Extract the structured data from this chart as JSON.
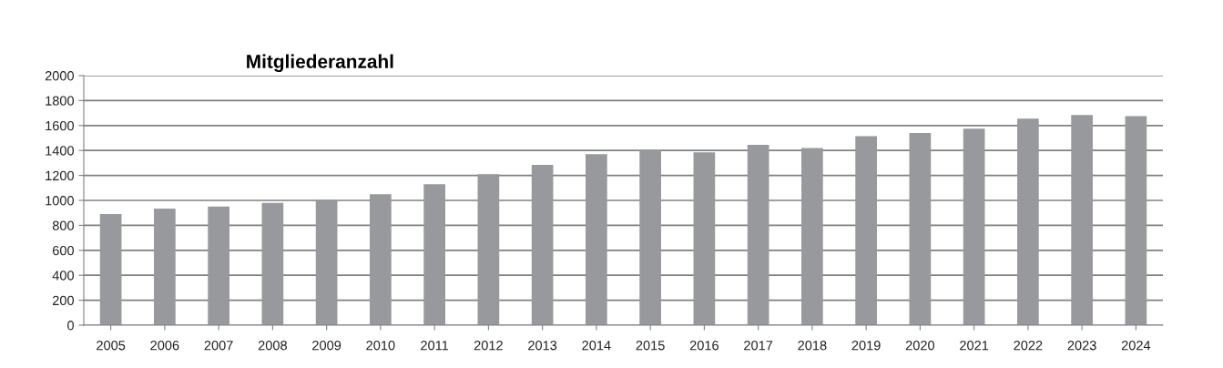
{
  "chart_data": {
    "type": "bar",
    "title": "Mitgliederanzahl",
    "categories": [
      "2005",
      "2006",
      "2007",
      "2008",
      "2009",
      "2010",
      "2011",
      "2012",
      "2013",
      "2014",
      "2015",
      "2016",
      "2017",
      "2018",
      "2019",
      "2020",
      "2021",
      "2022",
      "2023",
      "2024"
    ],
    "values": [
      890,
      935,
      950,
      980,
      1005,
      1050,
      1130,
      1210,
      1285,
      1370,
      1405,
      1385,
      1445,
      1420,
      1515,
      1540,
      1575,
      1655,
      1685,
      1675
    ],
    "color": "#98999d",
    "ylim": [
      0,
      2000
    ],
    "yticks": [
      0,
      200,
      400,
      600,
      800,
      1000,
      1200,
      1400,
      1600,
      1800,
      2000
    ],
    "grid": "y"
  }
}
